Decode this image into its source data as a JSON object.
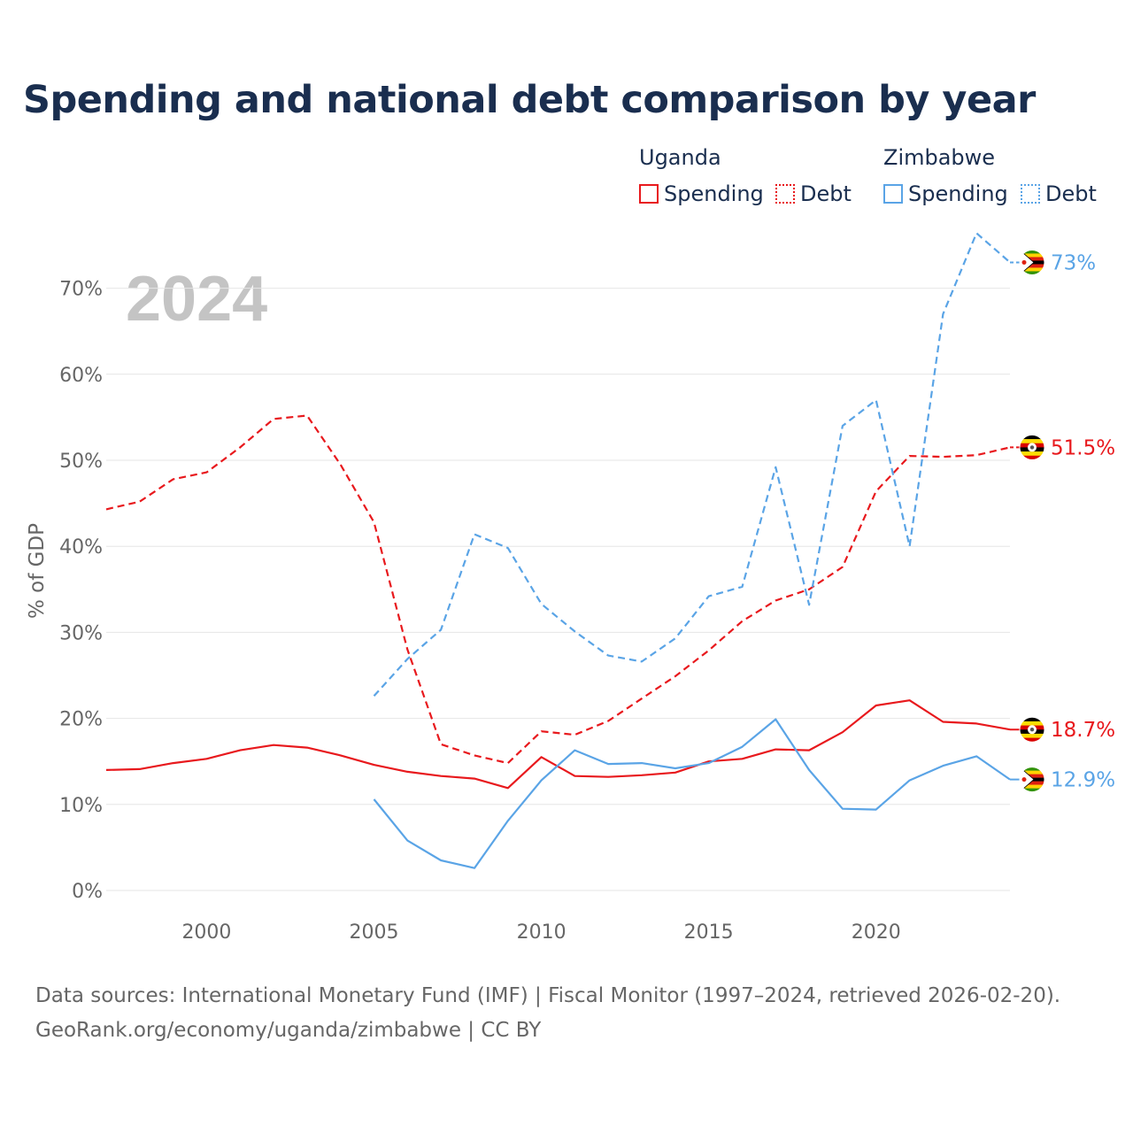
{
  "title": "Spending and national debt comparison by year",
  "legend": {
    "groups": [
      {
        "country": "Uganda",
        "items": [
          {
            "label": "Spending",
            "style": "solid",
            "color": "#e8191d"
          },
          {
            "label": "Debt",
            "style": "dotted",
            "color": "#e8191d"
          }
        ]
      },
      {
        "country": "Zimbabwe",
        "items": [
          {
            "label": "Spending",
            "style": "solid",
            "color": "#5aa4e6"
          },
          {
            "label": "Debt",
            "style": "dotted",
            "color": "#5aa4e6"
          }
        ]
      }
    ]
  },
  "chart_data": {
    "type": "line",
    "watermark_year": "2024",
    "ylabel": "% of GDP",
    "xlabel": "",
    "xlim": [
      1997,
      2024
    ],
    "ylim": [
      0,
      75
    ],
    "x_ticks": [
      2000,
      2005,
      2010,
      2015,
      2020
    ],
    "y_ticks": [
      0,
      10,
      20,
      30,
      40,
      50,
      60,
      70
    ],
    "y_tick_labels": [
      "0%",
      "10%",
      "20%",
      "30%",
      "40%",
      "50%",
      "60%",
      "70%"
    ],
    "series": [
      {
        "name": "Uganda Spending",
        "color": "#e8191d",
        "dash": false,
        "x": [
          1997,
          1998,
          1999,
          2000,
          2001,
          2002,
          2003,
          2004,
          2005,
          2006,
          2007,
          2008,
          2009,
          2010,
          2011,
          2012,
          2013,
          2014,
          2015,
          2016,
          2017,
          2018,
          2019,
          2020,
          2021,
          2022,
          2023,
          2024
        ],
        "values": [
          14.0,
          14.1,
          14.8,
          15.3,
          16.3,
          16.9,
          16.6,
          15.7,
          14.6,
          13.8,
          13.3,
          13.0,
          11.9,
          15.5,
          13.3,
          13.2,
          13.4,
          13.7,
          15.0,
          15.3,
          16.4,
          16.3,
          18.4,
          21.5,
          22.1,
          19.6,
          19.4,
          18.7
        ],
        "end_label": "18.7%",
        "flag": "uganda"
      },
      {
        "name": "Uganda Debt",
        "color": "#e8191d",
        "dash": true,
        "x": [
          1997,
          1998,
          1999,
          2000,
          2001,
          2002,
          2003,
          2004,
          2005,
          2006,
          2007,
          2008,
          2009,
          2010,
          2011,
          2012,
          2013,
          2014,
          2015,
          2016,
          2017,
          2018,
          2019,
          2020,
          2021,
          2022,
          2023,
          2024
        ],
        "values": [
          44.3,
          45.2,
          47.8,
          48.6,
          51.5,
          54.8,
          55.2,
          49.5,
          42.8,
          28.0,
          17.0,
          15.7,
          14.8,
          18.5,
          18.1,
          19.7,
          22.3,
          24.9,
          27.9,
          31.3,
          33.7,
          35.0,
          37.6,
          46.4,
          50.5,
          50.4,
          50.6,
          51.5
        ],
        "end_label": "51.5%",
        "flag": "uganda"
      },
      {
        "name": "Zimbabwe Spending",
        "color": "#5aa4e6",
        "dash": false,
        "x": [
          2005,
          2006,
          2007,
          2008,
          2009,
          2010,
          2011,
          2012,
          2013,
          2014,
          2015,
          2016,
          2017,
          2018,
          2019,
          2020,
          2021,
          2022,
          2023,
          2024
        ],
        "values": [
          10.6,
          5.8,
          3.5,
          2.6,
          8.1,
          12.8,
          16.3,
          14.7,
          14.8,
          14.2,
          14.8,
          16.7,
          19.9,
          14.0,
          9.5,
          9.4,
          12.8,
          14.5,
          15.6,
          12.9
        ],
        "end_label": "12.9%",
        "flag": "zimbabwe"
      },
      {
        "name": "Zimbabwe Debt",
        "color": "#5aa4e6",
        "dash": true,
        "x": [
          2005,
          2006,
          2007,
          2008,
          2009,
          2010,
          2011,
          2012,
          2013,
          2014,
          2015,
          2016,
          2017,
          2018,
          2019,
          2020,
          2021,
          2022,
          2023,
          2024
        ],
        "values": [
          22.6,
          26.9,
          30.3,
          41.4,
          39.8,
          33.3,
          30.1,
          27.3,
          26.6,
          29.3,
          34.2,
          35.3,
          49.2,
          33.2,
          54.0,
          57.0,
          40.0,
          67.0,
          76.4,
          73.0
        ],
        "end_label": "73%",
        "flag": "zimbabwe"
      }
    ]
  },
  "footer": {
    "line1": "Data sources: International Monetary Fund (IMF) | Fiscal Monitor (1997–2024, retrieved 2026-02-20).",
    "line2": "GeoRank.org/economy/uganda/zimbabwe | CC BY"
  }
}
